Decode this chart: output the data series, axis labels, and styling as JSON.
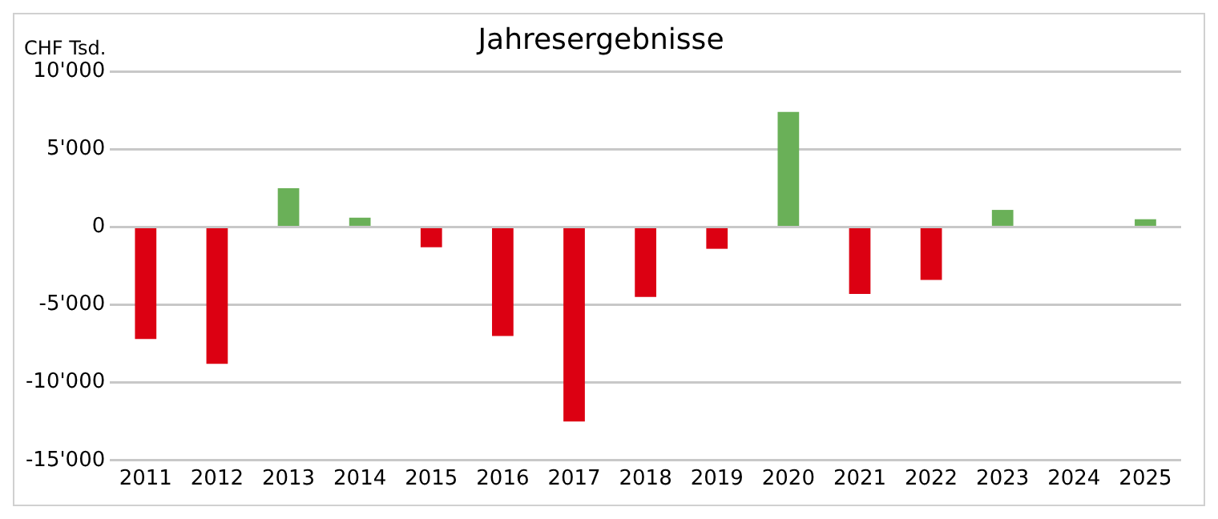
{
  "chart_data": {
    "type": "bar",
    "title": "Jahresergebnisse",
    "ylabel": "CHF Tsd.",
    "categories": [
      "2011",
      "2012",
      "2013",
      "2014",
      "2015",
      "2016",
      "2017",
      "2018",
      "2019",
      "2020",
      "2021",
      "2022",
      "2023",
      "2024",
      "2025"
    ],
    "values": [
      -7200,
      -8800,
      2500,
      600,
      -1300,
      -7000,
      -12500,
      -4500,
      -1400,
      7400,
      -4300,
      -3400,
      1100,
      0,
      500
    ],
    "colors": [
      "#dc0012",
      "#dc0012",
      "#6ab058",
      "#6ab058",
      "#dc0012",
      "#dc0012",
      "#dc0012",
      "#dc0012",
      "#dc0012",
      "#6ab058",
      "#dc0012",
      "#dc0012",
      "#6ab058",
      "#6ab058",
      "#6ab058"
    ],
    "ylim": [
      -15000,
      10000
    ],
    "yticks": [
      {
        "value": -15000,
        "label": "-15'000"
      },
      {
        "value": -10000,
        "label": "-10'000"
      },
      {
        "value": -5000,
        "label": "-5'000"
      },
      {
        "value": 0,
        "label": "0"
      },
      {
        "value": 5000,
        "label": "5'000"
      },
      {
        "value": 10000,
        "label": "10'000"
      }
    ],
    "grid": "y",
    "legend": false
  }
}
